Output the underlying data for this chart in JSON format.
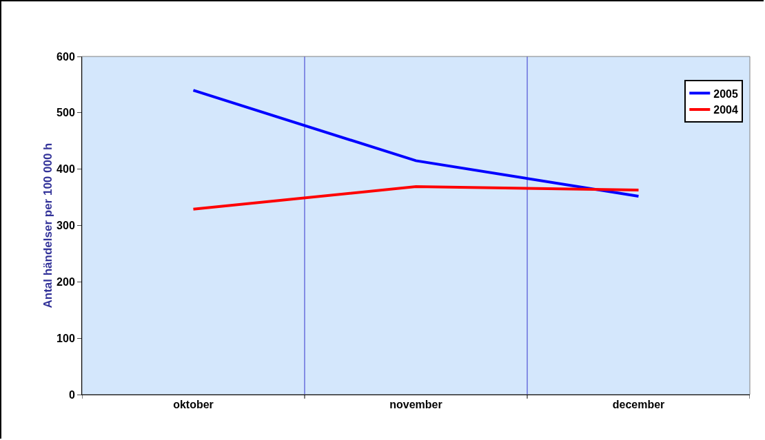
{
  "chart_data": {
    "type": "line",
    "ylabel": "Antal händelser per 100 000 h",
    "categories": [
      "oktober",
      "november",
      "december"
    ],
    "series": [
      {
        "name": "2005",
        "color": "#0000ff",
        "values": [
          540,
          415,
          352
        ]
      },
      {
        "name": "2004",
        "color": "#ff0000",
        "values": [
          329,
          369,
          363
        ]
      }
    ],
    "ylim": [
      0,
      600
    ],
    "yticks": [
      0,
      100,
      200,
      300,
      400,
      500,
      600
    ],
    "grid": "x",
    "legend": "top right",
    "marker": "none",
    "line_style": "solid"
  }
}
